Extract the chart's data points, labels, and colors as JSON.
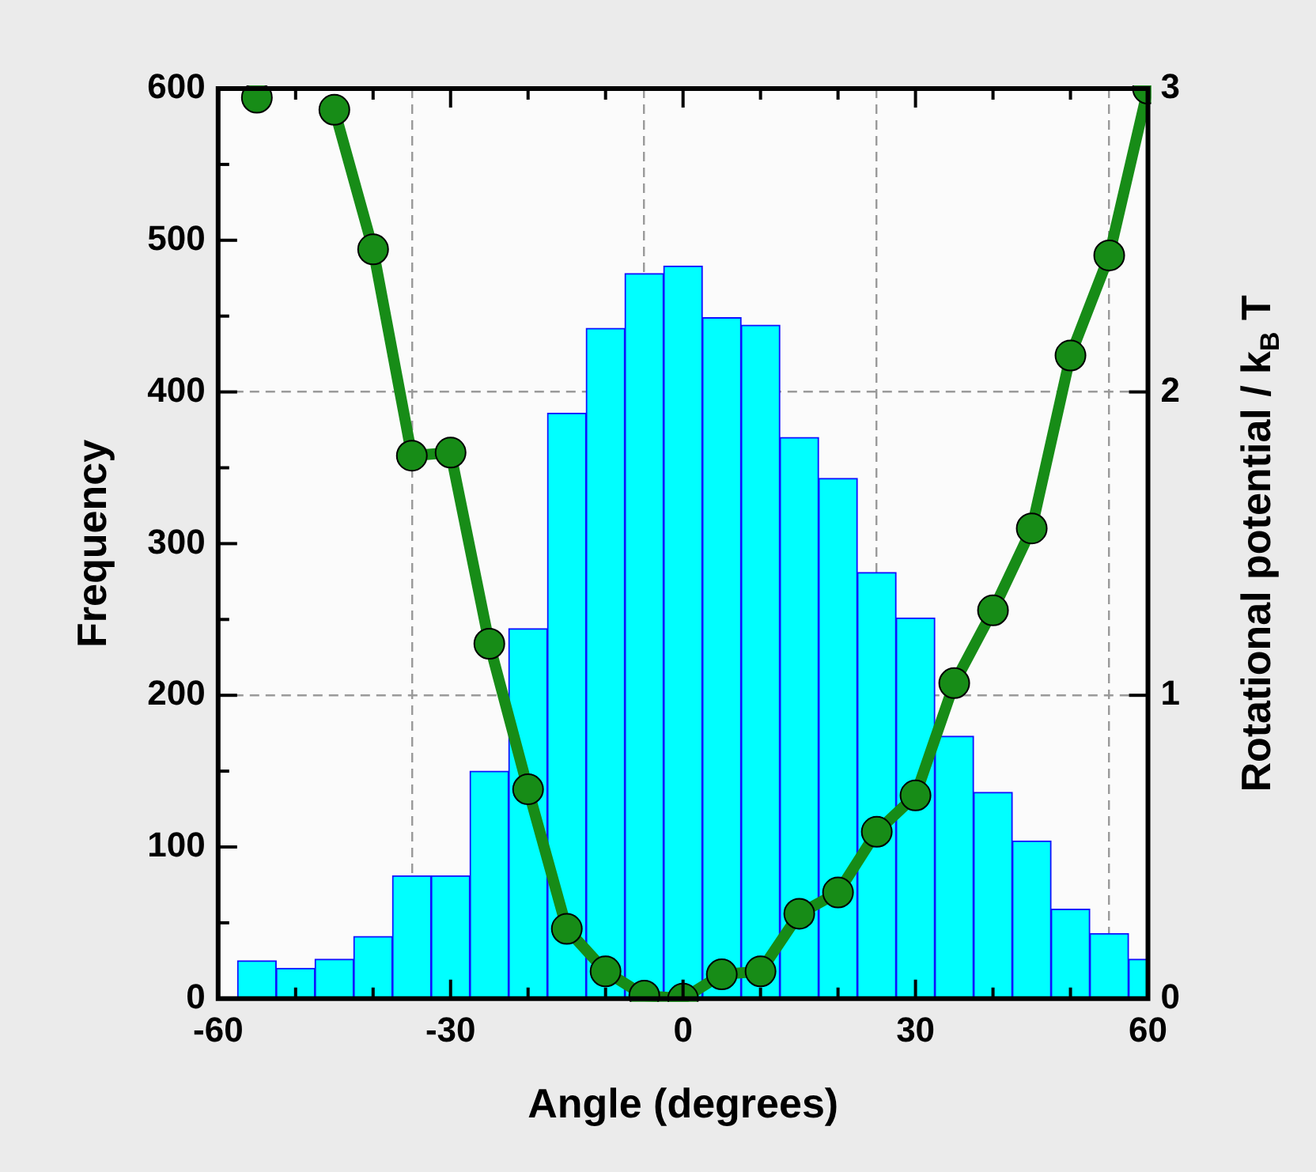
{
  "chart_data": {
    "type": "histogram",
    "xlabel": "Angle (degrees)",
    "ylabel": "Frequency",
    "y2label": "Rotational potential / k$_{B}$ T",
    "bins": [
      -57.5,
      -52.5,
      -47.5,
      -42.5,
      -37.5,
      -32.5,
      -27.5,
      -22.5,
      -17.5,
      -12.5,
      -7.5,
      -2.5,
      2.5,
      7.5,
      12.5,
      17.5,
      22.5,
      27.5,
      32.5,
      37.5,
      42.5,
      47.5,
      52.5,
      57.5,
      60
    ],
    "values": [
      25,
      20,
      26,
      41,
      81,
      81,
      150,
      244,
      386,
      442,
      478,
      483,
      449,
      444,
      370,
      343,
      281,
      251,
      173,
      136,
      104,
      59,
      43,
      26
    ],
    "color": "#00ffff",
    "series": [
      {
        "type": "line",
        "axis": "y2",
        "color": "#178c17",
        "x": [
          -55,
          -50,
          -45,
          -40,
          -35,
          -30,
          -25,
          -20,
          -15,
          -10,
          -5,
          0,
          5,
          10,
          15,
          20,
          25,
          30,
          35,
          40,
          45,
          50,
          55,
          60
        ],
        "values": [
          2.97,
          null,
          2.93,
          2.47,
          1.79,
          1.8,
          1.17,
          0.69,
          0.23,
          0.09,
          0.01,
          0,
          0.08,
          0.09,
          0.28,
          0.35,
          0.55,
          0.67,
          1.04,
          1.28,
          1.55,
          2.12,
          2.45,
          3
        ]
      }
    ],
    "marker": "circle",
    "grid": true,
    "xlim": [
      -60,
      60
    ],
    "xticks": [
      -60,
      {
        "value": -50,
        "label": null
      },
      {
        "value": -40,
        "label": null
      },
      -30,
      {
        "value": -20,
        "label": null
      },
      {
        "value": -10,
        "label": null
      },
      0,
      {
        "value": 10,
        "label": null
      },
      {
        "value": 20,
        "label": null
      },
      30,
      {
        "value": 40,
        "label": null
      },
      {
        "value": 50,
        "label": null
      },
      60
    ],
    "ylim": [
      0,
      600
    ],
    "yticks": [
      0,
      {
        "value": 50,
        "label": null
      },
      100,
      {
        "value": 150,
        "label": null
      },
      200,
      {
        "value": 250,
        "label": null
      },
      300,
      {
        "value": 350,
        "label": null
      },
      400,
      {
        "value": 450,
        "label": null
      },
      500,
      {
        "value": 550,
        "label": null
      },
      600
    ],
    "y2lim": [
      0,
      3
    ],
    "y2ticks": [
      0,
      1,
      2,
      3
    ]
  }
}
